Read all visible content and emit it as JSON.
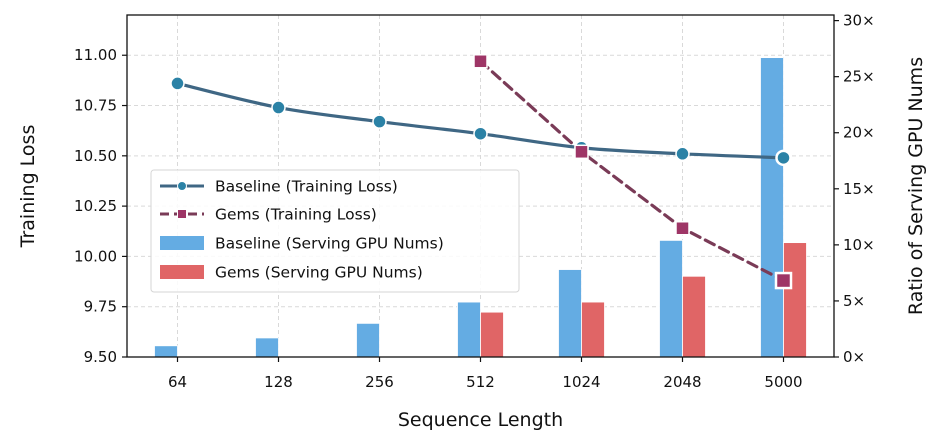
{
  "chart_data": {
    "type": "bar+line",
    "categories": [
      "64",
      "128",
      "256",
      "512",
      "1024",
      "2048",
      "5000"
    ],
    "xlabel": "Sequence Length",
    "ylabel_left": "Training Loss",
    "ylabel_right": "Ratio of Serving GPU Nums",
    "left_axis": {
      "ylim": [
        9.5,
        11.2
      ],
      "ticks": [
        9.5,
        9.75,
        10.0,
        10.25,
        10.5,
        10.75,
        11.0
      ],
      "tick_labels": [
        "9.50",
        "9.75",
        "10.00",
        "10.25",
        "10.50",
        "10.75",
        "11.00"
      ]
    },
    "right_axis": {
      "ylim": [
        0,
        30.5
      ],
      "ticks": [
        0,
        5,
        10,
        15,
        20,
        25,
        30
      ],
      "tick_labels": [
        "0×",
        "5×",
        "10×",
        "15×",
        "20×",
        "25×",
        "30×"
      ]
    },
    "grid": true,
    "legend_position": "center-left",
    "line_series": [
      {
        "name": "Baseline (Training Loss)",
        "axis": "left",
        "color": "#3f6784",
        "marker_color": "#2b82a6",
        "style": "solid",
        "marker": "circle",
        "values": [
          10.86,
          10.74,
          10.67,
          10.61,
          10.54,
          10.51,
          10.49
        ]
      },
      {
        "name": "Gems (Training Loss)",
        "axis": "left",
        "color": "#7a3b57",
        "marker_color": "#9e3566",
        "style": "dashed",
        "marker": "square",
        "values": [
          null,
          null,
          null,
          10.97,
          10.52,
          10.14,
          9.88
        ]
      }
    ],
    "bar_series": [
      {
        "name": "Baseline (Serving GPU Nums)",
        "axis": "right",
        "color": "#64ace3",
        "values": [
          1,
          1.7,
          3,
          4.9,
          7.8,
          10.4,
          26.7
        ]
      },
      {
        "name": "Gems (Serving GPU Nums)",
        "axis": "right",
        "color": "#e06566",
        "values": [
          0,
          0,
          0,
          4,
          4.9,
          7.2,
          10.2
        ]
      }
    ]
  }
}
